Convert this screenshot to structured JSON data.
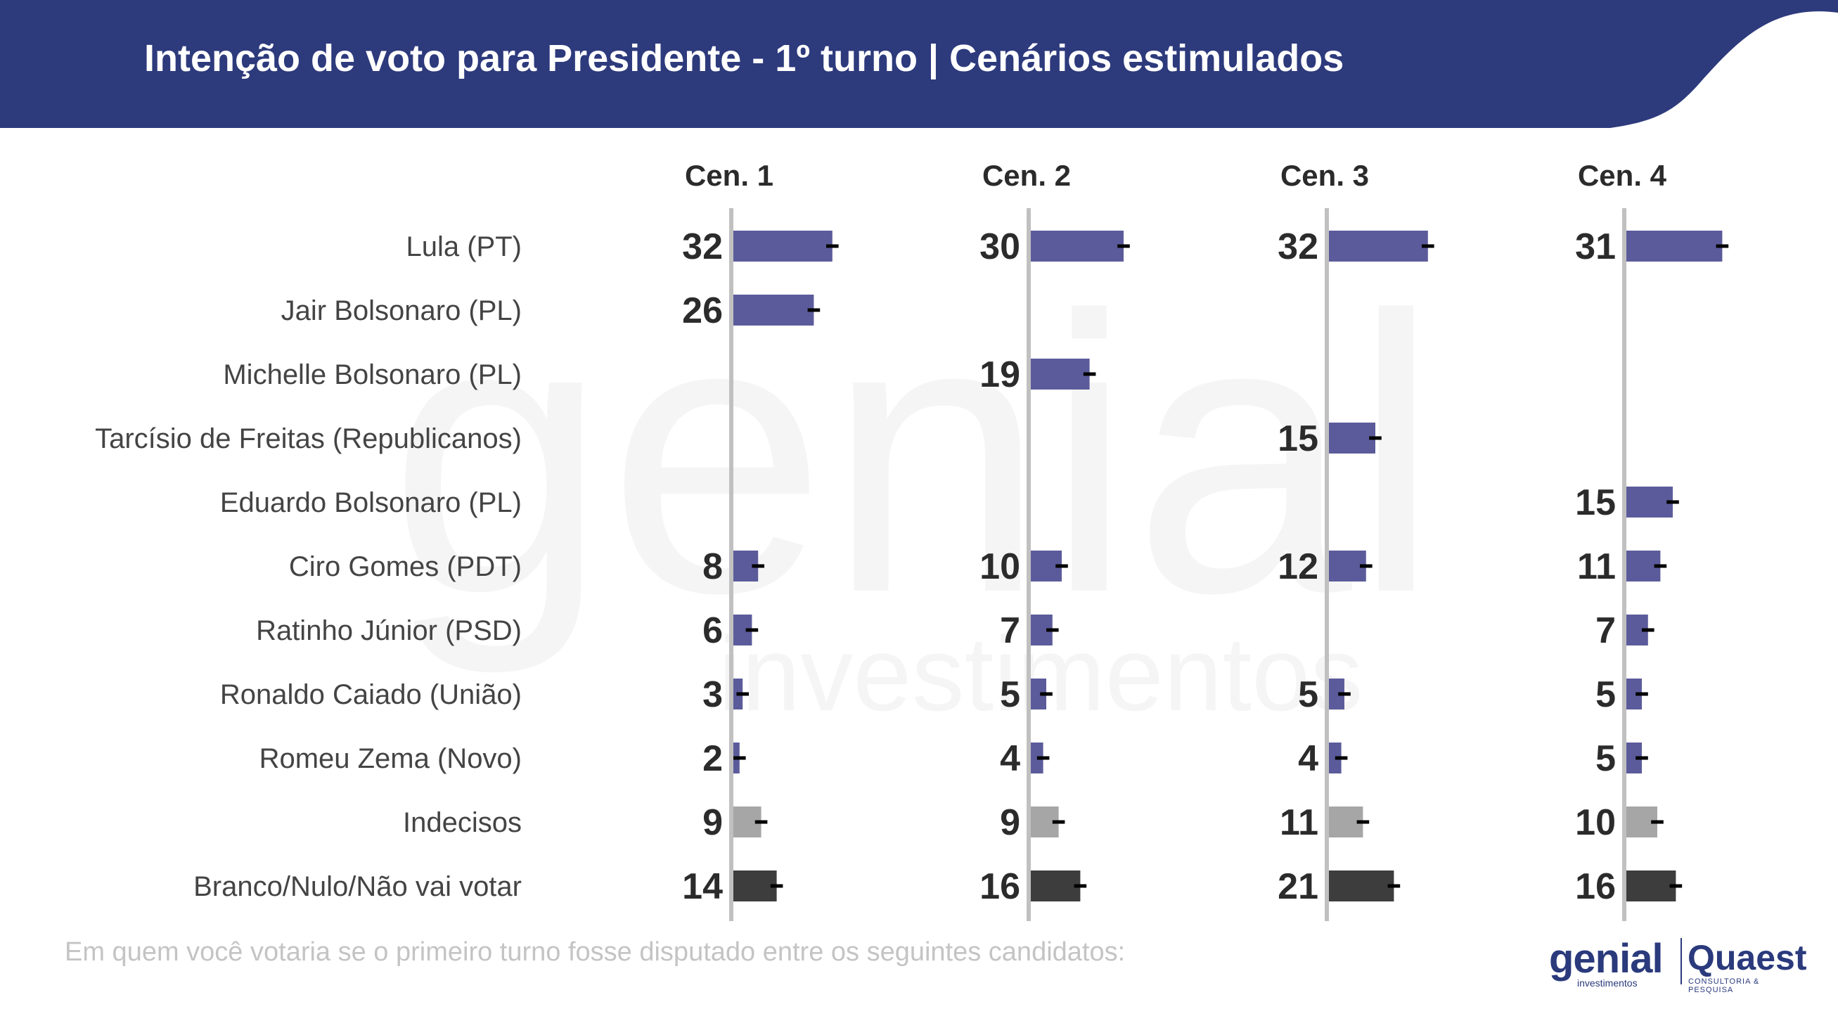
{
  "header": {
    "title": "Intenção de voto para Presidente - 1º turno | Cenários estimulados",
    "band_color": "#2d3a7c"
  },
  "footer": {
    "question": "Em quem você votaria se o primeiro turno fosse disputado entre os seguintes candidatos:",
    "logo_genial": "genial",
    "logo_genial_sub": "investimentos",
    "logo_quaest": "Quaest",
    "logo_quaest_sub": "CONSULTORIA & PESQUISA"
  },
  "watermark": {
    "word": "genial",
    "sub": "investimentos"
  },
  "colors": {
    "candidate": "#5b5b9b",
    "undecided": "#a6a6a6",
    "blank": "#3d3d3d",
    "axis": "#c0c0c0"
  },
  "chart_data": {
    "type": "bar",
    "orientation": "horizontal",
    "title": "Intenção de voto para Presidente - 1º turno | Cenários estimulados",
    "categories": [
      "Lula (PT)",
      "Jair Bolsonaro (PL)",
      "Michelle Bolsonaro (PL)",
      "Tarcísio de Freitas (Republicanos)",
      "Eduardo Bolsonaro (PL)",
      "Ciro Gomes (PDT)",
      "Ratinho Júnior (PSD)",
      "Ronaldo Caiado (União)",
      "Romeu Zema (Novo)",
      "Indecisos",
      "Branco/Nulo/Não vai votar"
    ],
    "category_kind": [
      "candidate",
      "candidate",
      "candidate",
      "candidate",
      "candidate",
      "candidate",
      "candidate",
      "candidate",
      "candidate",
      "undecided",
      "blank"
    ],
    "series": [
      {
        "name": "Cen. 1",
        "values": [
          32,
          26,
          null,
          null,
          null,
          8,
          6,
          3,
          2,
          9,
          14
        ]
      },
      {
        "name": "Cen. 2",
        "values": [
          30,
          null,
          19,
          null,
          null,
          10,
          7,
          5,
          4,
          9,
          16
        ]
      },
      {
        "name": "Cen. 3",
        "values": [
          32,
          null,
          null,
          15,
          null,
          12,
          null,
          5,
          4,
          11,
          21
        ]
      },
      {
        "name": "Cen. 4",
        "values": [
          31,
          null,
          null,
          null,
          15,
          11,
          7,
          5,
          5,
          10,
          16
        ]
      }
    ],
    "error_margin": 2,
    "xlim": [
      0,
      40
    ],
    "unit": "%"
  }
}
